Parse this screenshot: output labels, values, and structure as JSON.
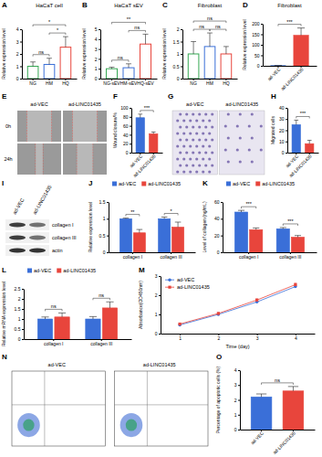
{
  "chart_data": [
    {
      "panel": "A",
      "type": "bar",
      "title": "HaCaT cell",
      "y_label": "Relative expression level",
      "categories": [
        "NG",
        "HM",
        "HQ"
      ],
      "values": [
        1.0,
        1.15,
        2.55
      ],
      "errors": [
        0.35,
        0.5,
        0.85
      ],
      "colors": [
        "#35a853",
        "#3a6fd8",
        "#e8453c"
      ],
      "ylim": [
        0,
        4
      ],
      "yticks": [
        0,
        1,
        2,
        3,
        4
      ],
      "comparisons": [
        {
          "from": "NG",
          "to": "HM",
          "label": "ns"
        },
        {
          "from": "HM",
          "to": "HQ",
          "label": "*"
        },
        {
          "from": "NG",
          "to": "HQ",
          "label": "*"
        }
      ]
    },
    {
      "panel": "B",
      "type": "bar",
      "title": "HaCaT sEV",
      "y_label": "Relative expression level",
      "categories": [
        "NG-sEV",
        "HM-sEV",
        "HQ-sEV"
      ],
      "values": [
        1.0,
        1.1,
        3.5
      ],
      "errors": [
        0.15,
        0.4,
        1.0
      ],
      "colors": [
        "#35a853",
        "#3a6fd8",
        "#e8453c"
      ],
      "ylim": [
        0,
        5
      ],
      "yticks": [
        0,
        1,
        2,
        3,
        4,
        5
      ],
      "comparisons": [
        {
          "from": "NG-sEV",
          "to": "HM-sEV",
          "label": "ns"
        },
        {
          "from": "HM-sEV",
          "to": "HQ-sEV",
          "label": "ns"
        },
        {
          "from": "NG-sEV",
          "to": "HQ-sEV",
          "label": "**"
        }
      ]
    },
    {
      "panel": "C",
      "type": "bar",
      "title": "Fibroblast",
      "y_label": "Relative expression level",
      "categories": [
        "NG",
        "HM",
        "HQ"
      ],
      "values": [
        1.0,
        1.3,
        1.0
      ],
      "errors": [
        0.5,
        0.55,
        0.3
      ],
      "colors": [
        "#35a853",
        "#3a6fd8",
        "#e8453c"
      ],
      "ylim": [
        0,
        2
      ],
      "yticks": [
        0,
        0.5,
        1,
        1.5,
        2
      ],
      "comparisons": [
        {
          "from": "NG",
          "to": "HM",
          "label": "ns"
        },
        {
          "from": "HM",
          "to": "HQ",
          "label": "ns"
        },
        {
          "from": "NG",
          "to": "HQ",
          "label": "ns"
        }
      ]
    },
    {
      "panel": "D",
      "type": "bar",
      "title": "Fibroblast",
      "y_label": "Relative expression level",
      "categories": [
        "ad-VEC",
        "ad-LINC01435"
      ],
      "values": [
        1,
        145
      ],
      "errors": [
        0.5,
        35
      ],
      "colors": [
        "#3a6fd8",
        "#e8453c"
      ],
      "ylim": [
        0,
        200
      ],
      "yticks": [
        0,
        50,
        100,
        150,
        200
      ],
      "comparisons": [
        {
          "from": "ad-VEC",
          "to": "ad-LINC01435",
          "label": "***"
        }
      ]
    },
    {
      "panel": "E",
      "type": "image",
      "columns": [
        "ad-VEC",
        "ad-LINC01435"
      ],
      "rows": [
        "0h",
        "24h"
      ]
    },
    {
      "panel": "F",
      "type": "bar",
      "y_label": "Wound closure/%",
      "categories": [
        "ad-VEC",
        "ad-LINC01435"
      ],
      "values": [
        78,
        42
      ],
      "errors": [
        8,
        4
      ],
      "colors": [
        "#3a6fd8",
        "#e8453c"
      ],
      "ylim": [
        0,
        100
      ],
      "yticks": [
        0,
        20,
        40,
        60,
        80,
        100
      ],
      "comparisons": [
        {
          "from": "ad-VEC",
          "to": "ad-LINC01435",
          "label": "***"
        }
      ]
    },
    {
      "panel": "G",
      "type": "image",
      "columns": [
        "ad-VEC",
        "ad-LINC01435"
      ]
    },
    {
      "panel": "H",
      "type": "bar",
      "y_label": "Migrated cells",
      "categories": [
        "ad-VEC",
        "ad-LINC01435"
      ],
      "values": [
        25,
        8
      ],
      "errors": [
        4,
        3
      ],
      "colors": [
        "#3a6fd8",
        "#e8453c"
      ],
      "ylim": [
        0,
        40
      ],
      "yticks": [
        0,
        10,
        20,
        30,
        40
      ],
      "comparisons": [
        {
          "from": "ad-VEC",
          "to": "ad-LINC01435",
          "label": "***"
        }
      ]
    },
    {
      "panel": "I",
      "type": "image",
      "columns": [
        "ad-VEC",
        "ad-LINC01435"
      ],
      "rows": [
        "collagen I",
        "collagen III",
        "actin"
      ]
    },
    {
      "panel": "J",
      "type": "bar",
      "y_label": "Relative expression level",
      "categories": [
        "collagen I",
        "collagen III"
      ],
      "series": [
        {
          "name": "ad-VEC",
          "color": "#3a6fd8",
          "values": [
            1.0,
            1.0
          ],
          "errors": [
            0.02,
            0.05
          ]
        },
        {
          "name": "ad-LINC01435",
          "color": "#e8453c",
          "values": [
            0.58,
            0.75
          ],
          "errors": [
            0.1,
            0.15
          ]
        }
      ],
      "ylim": [
        0,
        1.5
      ],
      "yticks": [
        0,
        0.5,
        1,
        1.5
      ],
      "legend": "top",
      "significance": [
        "**",
        "*"
      ]
    },
    {
      "panel": "K",
      "type": "bar",
      "y_label": "Level of collagen (ng/mL)",
      "categories": [
        "collagen I",
        "collagen III"
      ],
      "series": [
        {
          "name": "ad-VEC",
          "color": "#3a6fd8",
          "values": [
            48,
            28
          ],
          "errors": [
            2,
            1.5
          ]
        },
        {
          "name": "ad-LINC01435",
          "color": "#e8453c",
          "values": [
            27,
            18
          ],
          "errors": [
            2,
            2
          ]
        }
      ],
      "ylim": [
        0,
        60
      ],
      "yticks": [
        0,
        20,
        40,
        60
      ],
      "legend": "top",
      "significance": [
        "***",
        "***"
      ]
    },
    {
      "panel": "L",
      "type": "bar",
      "y_label": "Relative mRNA expression level",
      "categories": [
        "collagen I",
        "collagen III"
      ],
      "series": [
        {
          "name": "ad-VEC",
          "color": "#3a6fd8",
          "values": [
            1.0,
            1.0
          ],
          "errors": [
            0.1,
            0.12
          ]
        },
        {
          "name": "ad-LINC01435",
          "color": "#e8453c",
          "values": [
            1.1,
            1.55
          ],
          "errors": [
            0.2,
            0.3
          ]
        }
      ],
      "ylim": [
        0,
        2.5
      ],
      "yticks": [
        0,
        0.5,
        1,
        1.5,
        2,
        2.5
      ],
      "legend": "top",
      "significance": [
        "ns",
        "ns"
      ]
    },
    {
      "panel": "M",
      "type": "line",
      "x_label": "Time (day)",
      "y_label": "Absorbance(OD450nm)",
      "x": [
        1,
        2,
        3,
        4
      ],
      "xlim": [
        0.5,
        4.5
      ],
      "xticks": [
        1,
        2,
        3,
        4
      ],
      "ylim": [
        0,
        3
      ],
      "yticks": [
        0,
        1,
        2,
        3
      ],
      "legend": "upper left",
      "series": [
        {
          "name": "ad-VEC",
          "color": "#3a6fd8",
          "marker": "circle",
          "values": [
            0.45,
            1.0,
            1.65,
            2.45
          ],
          "errors": [
            0.03,
            0.05,
            0.06,
            0.08
          ]
        },
        {
          "name": "ad-LINC01435",
          "color": "#e8453c",
          "marker": "square",
          "values": [
            0.5,
            1.05,
            1.75,
            2.55
          ],
          "errors": [
            0.03,
            0.05,
            0.06,
            0.08
          ]
        }
      ]
    },
    {
      "panel": "N",
      "type": "image",
      "columns": [
        "ad-VEC",
        "ad-LINC01435"
      ]
    },
    {
      "panel": "O",
      "type": "bar",
      "y_label": "Percentage of apoptotic cells (%)",
      "categories": [
        "ad-VEC",
        "ad-LINC01435"
      ],
      "values": [
        2.2,
        2.6
      ],
      "errors": [
        0.2,
        0.3
      ],
      "colors": [
        "#3a6fd8",
        "#e8453c"
      ],
      "ylim": [
        0,
        4
      ],
      "yticks": [
        0,
        1,
        2,
        3,
        4
      ],
      "comparisons": [
        {
          "from": "ad-VEC",
          "to": "ad-LINC01435",
          "label": "ns"
        }
      ]
    }
  ]
}
